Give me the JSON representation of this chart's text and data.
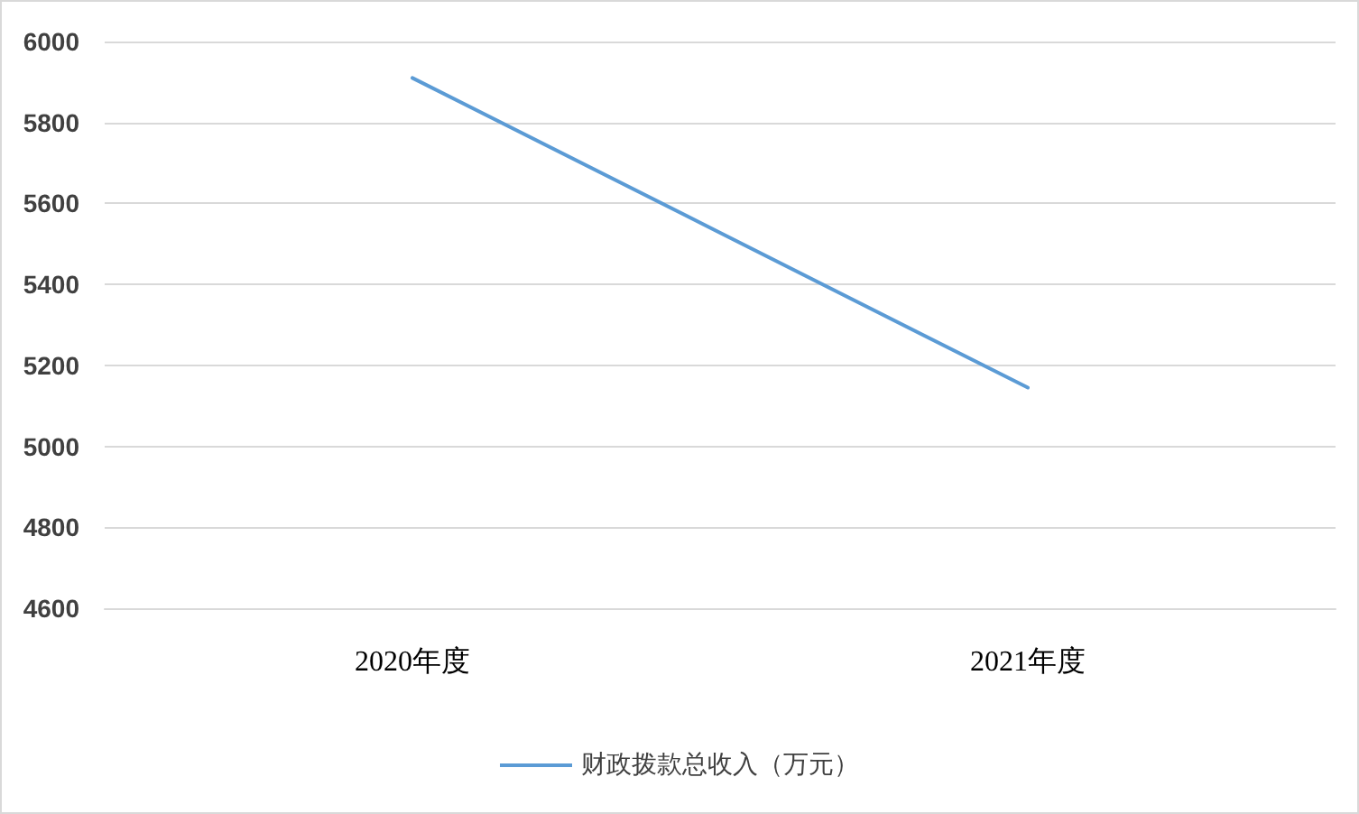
{
  "chart_data": {
    "type": "line",
    "categories": [
      "2020年度",
      "2021年度"
    ],
    "series": [
      {
        "name": "财政拨款总收入（万元）",
        "color": "#5b9bd5",
        "values": [
          5910,
          5145
        ]
      }
    ],
    "ylim": [
      4600,
      6000
    ],
    "yticks": [
      4600,
      4800,
      5000,
      5200,
      5400,
      5600,
      5800,
      6000
    ],
    "grid": "y",
    "legend": "bottom",
    "marker": "none",
    "line_style": "solid"
  }
}
